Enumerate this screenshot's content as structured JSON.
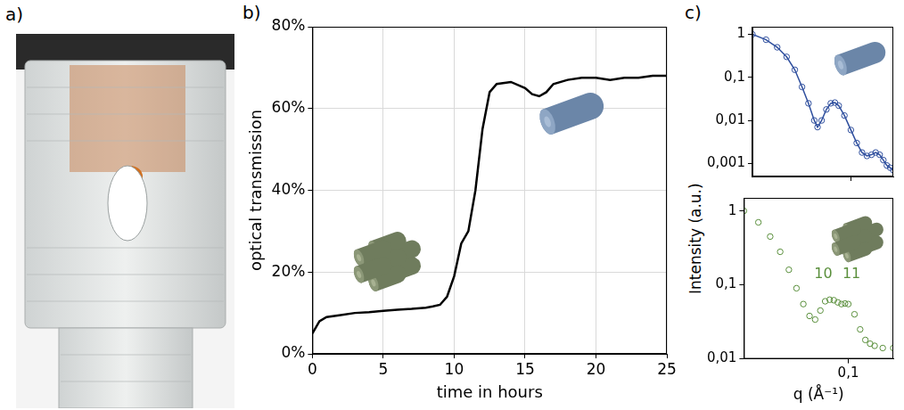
{
  "photo": {
    "panel": "a)"
  },
  "chart_data": [
    {
      "panel": "b)",
      "type": "line",
      "xlabel": "time in hours",
      "ylabel": "optical transmission",
      "x": [
        0,
        0.5,
        1,
        2,
        3,
        4,
        5,
        6,
        7,
        8,
        8.5,
        9,
        9.5,
        10,
        10.5,
        11,
        11.5,
        12,
        12.5,
        13,
        14,
        15,
        15.5,
        16,
        16.5,
        17,
        18,
        19,
        20,
        21,
        22,
        23,
        24,
        25
      ],
      "series": [
        {
          "color": "#000000",
          "line_style": "solid",
          "marker": "none",
          "values": [
            5,
            8,
            9,
            9.5,
            10,
            10.2,
            10.5,
            10.8,
            11,
            11.3,
            11.6,
            12,
            14,
            19,
            27,
            30,
            40,
            55,
            64,
            66,
            66.5,
            65,
            63.5,
            63,
            64,
            66,
            67,
            67.5,
            67.5,
            67,
            67.5,
            67.5,
            68,
            68
          ]
        }
      ],
      "xlim": [
        0,
        25
      ],
      "xticks": [
        0,
        5,
        10,
        15,
        20,
        25
      ],
      "ylim": [
        0,
        80
      ],
      "yticks": [
        {
          "value": 0,
          "label": "0%"
        },
        {
          "value": 20,
          "label": "20%"
        },
        {
          "value": 40,
          "label": "40%"
        },
        {
          "value": 60,
          "label": "60%"
        },
        {
          "value": 80,
          "label": "80%"
        }
      ],
      "grid": true
    },
    {
      "panel": "c)",
      "type": "line",
      "ylabel": "Intensity (a.u.)",
      "log": true,
      "x": [
        0.02,
        0.025,
        0.03,
        0.035,
        0.04,
        0.045,
        0.05,
        0.055,
        0.058,
        0.062,
        0.067,
        0.072,
        0.077,
        0.082,
        0.09,
        0.1,
        0.11,
        0.12,
        0.13,
        0.14,
        0.15,
        0.16,
        0.17,
        0.18,
        0.19,
        0.2
      ],
      "series": [
        {
          "color": "#2f4f9e",
          "line_style": "solid",
          "marker": "circle",
          "values": [
            1.0,
            0.75,
            0.5,
            0.3,
            0.15,
            0.06,
            0.025,
            0.01,
            0.007,
            0.01,
            0.018,
            0.025,
            0.026,
            0.022,
            0.013,
            0.006,
            0.003,
            0.0018,
            0.0015,
            0.0016,
            0.0018,
            0.0016,
            0.0012,
            0.0009,
            0.0008,
            0.0007
          ]
        }
      ],
      "xlim": [
        0.02,
        0.2
      ],
      "xticks": [
        {
          "value": 0.1,
          "label": "0,1"
        }
      ],
      "ylim": [
        0.0005,
        1.5
      ],
      "yticks": [
        {
          "value": 0.001,
          "label": "0,001"
        },
        {
          "value": 0.01,
          "label": "0,01"
        },
        {
          "value": 0.1,
          "label": "0,1"
        },
        1
      ],
      "grid": false,
      "tick_labels": "y"
    },
    {
      "type": "line",
      "xlabel": "q (Å⁻¹)",
      "log": true,
      "x": [
        0.02,
        0.025,
        0.03,
        0.035,
        0.04,
        0.045,
        0.05,
        0.055,
        0.06,
        0.065,
        0.07,
        0.075,
        0.08,
        0.085,
        0.09,
        0.095,
        0.1,
        0.11,
        0.12,
        0.13,
        0.14,
        0.15,
        0.17,
        0.2
      ],
      "series": [
        {
          "color": "#5a8f3c",
          "line_style": "none",
          "marker": "circle",
          "values": [
            1.0,
            0.7,
            0.45,
            0.28,
            0.16,
            0.09,
            0.055,
            0.038,
            0.034,
            0.045,
            0.06,
            0.063,
            0.062,
            0.058,
            0.055,
            0.056,
            0.055,
            0.04,
            0.025,
            0.018,
            0.016,
            0.015,
            0.014,
            0.014
          ]
        }
      ],
      "xlim": [
        0.02,
        0.2
      ],
      "xticks": [
        {
          "value": 0.1,
          "label": "0,1"
        }
      ],
      "ylim": [
        0.01,
        1.5
      ],
      "yticks": [
        {
          "value": 0.01,
          "label": "0,01"
        },
        {
          "value": 0.1,
          "label": "0,1"
        },
        1
      ],
      "annotations": [
        {
          "text": "10",
          "x": 0.068,
          "y": 0.14,
          "color": "#5a8f3c"
        },
        {
          "text": "11",
          "x": 0.105,
          "y": 0.14,
          "color": "#5a8f3c"
        }
      ],
      "grid": false
    }
  ]
}
